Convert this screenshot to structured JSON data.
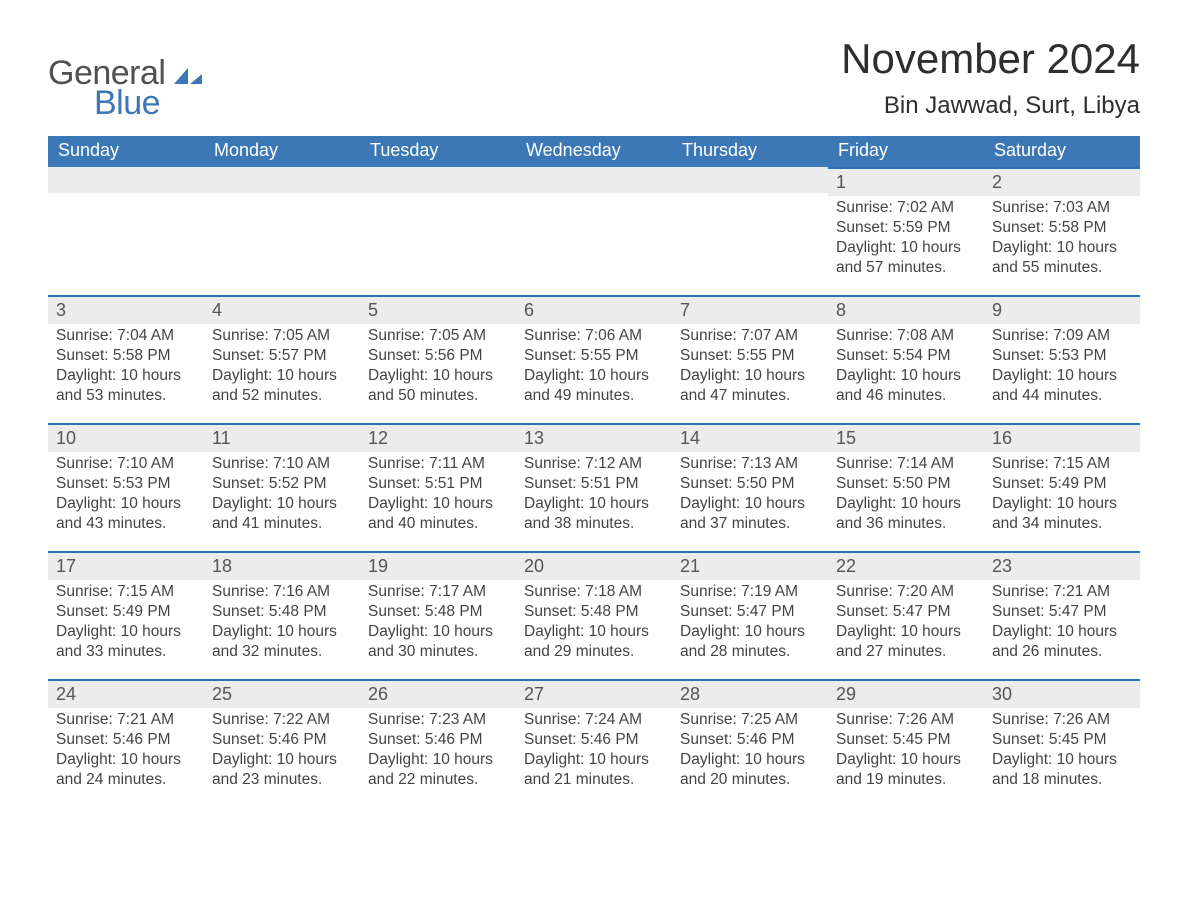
{
  "logo": {
    "line1": "General",
    "line2": "Blue",
    "color_general": "#505050",
    "color_blue": "#3b78b5"
  },
  "title": "November 2024",
  "location": "Bin Jawwad, Surt, Libya",
  "colors": {
    "header_bg": "#3b78b5",
    "header_text": "#ffffff",
    "row_top_border": "#2c6fb3",
    "daynum_bg": "#ececec",
    "body_bg": "#ffffff",
    "text": "#333333"
  },
  "typography": {
    "title_fontsize_pt": 32,
    "location_fontsize_pt": 18,
    "header_fontsize_pt": 14,
    "cell_fontsize_pt": 12,
    "font_family": "Segoe UI, Arial, sans-serif"
  },
  "layout": {
    "columns": 7,
    "rows": 5,
    "first_day_column_index": 5
  },
  "weekday_headers": [
    "Sunday",
    "Monday",
    "Tuesday",
    "Wednesday",
    "Thursday",
    "Friday",
    "Saturday"
  ],
  "labels": {
    "sunrise": "Sunrise:",
    "sunset": "Sunset:",
    "daylight": "Daylight:"
  },
  "days": [
    {
      "n": 1,
      "sunrise": "7:02 AM",
      "sunset": "5:59 PM",
      "daylight": "10 hours and 57 minutes."
    },
    {
      "n": 2,
      "sunrise": "7:03 AM",
      "sunset": "5:58 PM",
      "daylight": "10 hours and 55 minutes."
    },
    {
      "n": 3,
      "sunrise": "7:04 AM",
      "sunset": "5:58 PM",
      "daylight": "10 hours and 53 minutes."
    },
    {
      "n": 4,
      "sunrise": "7:05 AM",
      "sunset": "5:57 PM",
      "daylight": "10 hours and 52 minutes."
    },
    {
      "n": 5,
      "sunrise": "7:05 AM",
      "sunset": "5:56 PM",
      "daylight": "10 hours and 50 minutes."
    },
    {
      "n": 6,
      "sunrise": "7:06 AM",
      "sunset": "5:55 PM",
      "daylight": "10 hours and 49 minutes."
    },
    {
      "n": 7,
      "sunrise": "7:07 AM",
      "sunset": "5:55 PM",
      "daylight": "10 hours and 47 minutes."
    },
    {
      "n": 8,
      "sunrise": "7:08 AM",
      "sunset": "5:54 PM",
      "daylight": "10 hours and 46 minutes."
    },
    {
      "n": 9,
      "sunrise": "7:09 AM",
      "sunset": "5:53 PM",
      "daylight": "10 hours and 44 minutes."
    },
    {
      "n": 10,
      "sunrise": "7:10 AM",
      "sunset": "5:53 PM",
      "daylight": "10 hours and 43 minutes."
    },
    {
      "n": 11,
      "sunrise": "7:10 AM",
      "sunset": "5:52 PM",
      "daylight": "10 hours and 41 minutes."
    },
    {
      "n": 12,
      "sunrise": "7:11 AM",
      "sunset": "5:51 PM",
      "daylight": "10 hours and 40 minutes."
    },
    {
      "n": 13,
      "sunrise": "7:12 AM",
      "sunset": "5:51 PM",
      "daylight": "10 hours and 38 minutes."
    },
    {
      "n": 14,
      "sunrise": "7:13 AM",
      "sunset": "5:50 PM",
      "daylight": "10 hours and 37 minutes."
    },
    {
      "n": 15,
      "sunrise": "7:14 AM",
      "sunset": "5:50 PM",
      "daylight": "10 hours and 36 minutes."
    },
    {
      "n": 16,
      "sunrise": "7:15 AM",
      "sunset": "5:49 PM",
      "daylight": "10 hours and 34 minutes."
    },
    {
      "n": 17,
      "sunrise": "7:15 AM",
      "sunset": "5:49 PM",
      "daylight": "10 hours and 33 minutes."
    },
    {
      "n": 18,
      "sunrise": "7:16 AM",
      "sunset": "5:48 PM",
      "daylight": "10 hours and 32 minutes."
    },
    {
      "n": 19,
      "sunrise": "7:17 AM",
      "sunset": "5:48 PM",
      "daylight": "10 hours and 30 minutes."
    },
    {
      "n": 20,
      "sunrise": "7:18 AM",
      "sunset": "5:48 PM",
      "daylight": "10 hours and 29 minutes."
    },
    {
      "n": 21,
      "sunrise": "7:19 AM",
      "sunset": "5:47 PM",
      "daylight": "10 hours and 28 minutes."
    },
    {
      "n": 22,
      "sunrise": "7:20 AM",
      "sunset": "5:47 PM",
      "daylight": "10 hours and 27 minutes."
    },
    {
      "n": 23,
      "sunrise": "7:21 AM",
      "sunset": "5:47 PM",
      "daylight": "10 hours and 26 minutes."
    },
    {
      "n": 24,
      "sunrise": "7:21 AM",
      "sunset": "5:46 PM",
      "daylight": "10 hours and 24 minutes."
    },
    {
      "n": 25,
      "sunrise": "7:22 AM",
      "sunset": "5:46 PM",
      "daylight": "10 hours and 23 minutes."
    },
    {
      "n": 26,
      "sunrise": "7:23 AM",
      "sunset": "5:46 PM",
      "daylight": "10 hours and 22 minutes."
    },
    {
      "n": 27,
      "sunrise": "7:24 AM",
      "sunset": "5:46 PM",
      "daylight": "10 hours and 21 minutes."
    },
    {
      "n": 28,
      "sunrise": "7:25 AM",
      "sunset": "5:46 PM",
      "daylight": "10 hours and 20 minutes."
    },
    {
      "n": 29,
      "sunrise": "7:26 AM",
      "sunset": "5:45 PM",
      "daylight": "10 hours and 19 minutes."
    },
    {
      "n": 30,
      "sunrise": "7:26 AM",
      "sunset": "5:45 PM",
      "daylight": "10 hours and 18 minutes."
    }
  ]
}
